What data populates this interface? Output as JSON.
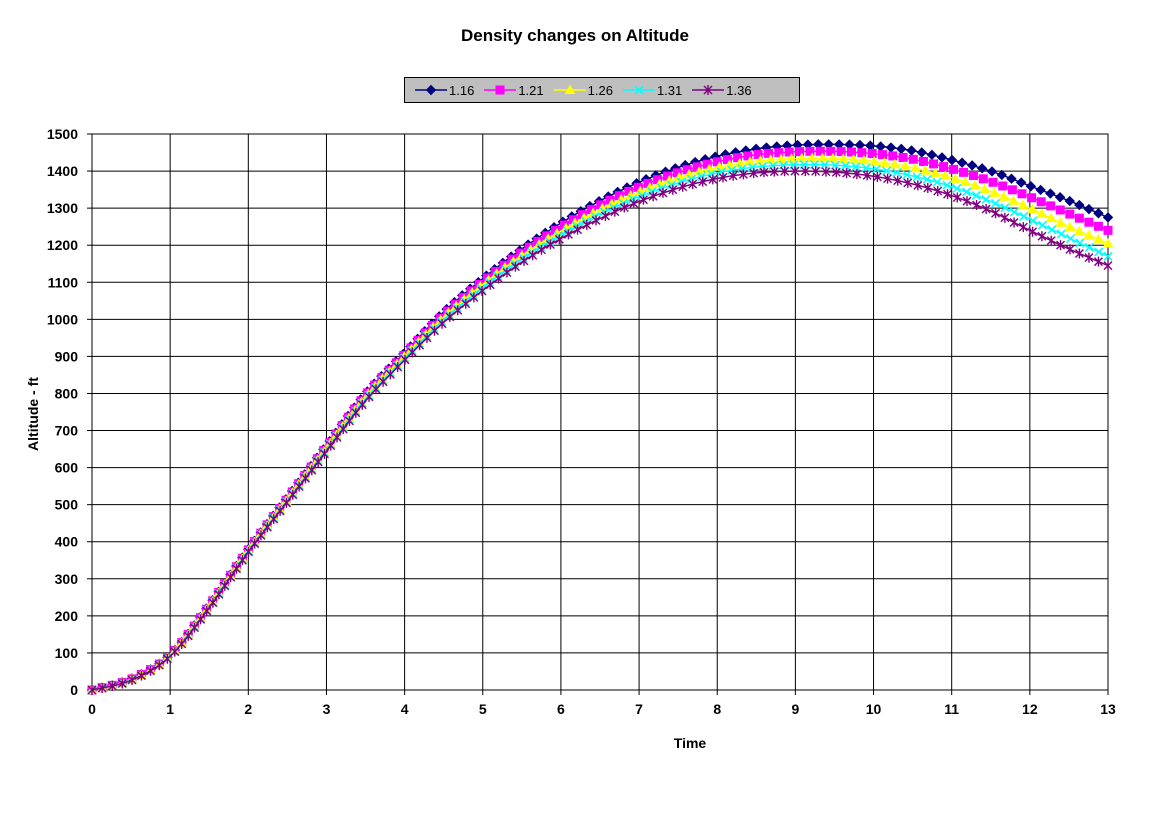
{
  "chart_data": {
    "type": "line",
    "title": "Density changes on Altitude",
    "xlabel": "Time",
    "ylabel": "Altitude - ft",
    "xlim": [
      0,
      13
    ],
    "ylim": [
      0,
      1500
    ],
    "x_ticks": [
      0,
      1,
      2,
      3,
      4,
      5,
      6,
      7,
      8,
      9,
      10,
      11,
      12,
      13
    ],
    "y_ticks": [
      0,
      100,
      200,
      300,
      400,
      500,
      600,
      700,
      800,
      900,
      1000,
      1100,
      1200,
      1300,
      1400,
      1500
    ],
    "grid": true,
    "legend_position": "top-center",
    "x": [
      0,
      0.5,
      1,
      1.5,
      2,
      2.5,
      3,
      3.5,
      4,
      4.5,
      5,
      5.5,
      6,
      6.5,
      7,
      7.5,
      8,
      8.5,
      9,
      9.5,
      10,
      10.5,
      11,
      11.5,
      12,
      12.5,
      13
    ],
    "series": [
      {
        "name": "1.16",
        "color": "#000080",
        "marker": "diamond",
        "values": [
          0,
          30,
          95,
          230,
          380,
          520,
          660,
          800,
          910,
          1020,
          1110,
          1190,
          1260,
          1320,
          1370,
          1410,
          1440,
          1460,
          1470,
          1472,
          1468,
          1455,
          1430,
          1400,
          1360,
          1320,
          1275
        ]
      },
      {
        "name": "1.21",
        "color": "#ff00ff",
        "marker": "square",
        "values": [
          0,
          29,
          94,
          228,
          378,
          517,
          656,
          795,
          905,
          1013,
          1102,
          1181,
          1249,
          1308,
          1357,
          1396,
          1425,
          1444,
          1452,
          1453,
          1447,
          1432,
          1406,
          1372,
          1330,
          1285,
          1240
        ]
      },
      {
        "name": "1.26",
        "color": "#ffff00",
        "marker": "triangle",
        "values": [
          0,
          28,
          93,
          226,
          376,
          514,
          652,
          790,
          900,
          1006,
          1094,
          1172,
          1238,
          1296,
          1344,
          1382,
          1410,
          1427,
          1434,
          1434,
          1426,
          1409,
          1382,
          1345,
          1300,
          1250,
          1205
        ]
      },
      {
        "name": "1.31",
        "color": "#00ffff",
        "marker": "x",
        "values": [
          0,
          27,
          92,
          224,
          374,
          511,
          648,
          785,
          895,
          999,
          1086,
          1163,
          1228,
          1284,
          1331,
          1368,
          1395,
          1411,
          1417,
          1416,
          1406,
          1387,
          1358,
          1318,
          1270,
          1220,
          1170
        ]
      },
      {
        "name": "1.36",
        "color": "#800080",
        "marker": "star",
        "values": [
          0,
          26,
          91,
          222,
          372,
          508,
          644,
          780,
          890,
          992,
          1078,
          1154,
          1218,
          1272,
          1318,
          1354,
          1380,
          1395,
          1400,
          1397,
          1386,
          1365,
          1334,
          1292,
          1240,
          1190,
          1145
        ]
      }
    ]
  }
}
